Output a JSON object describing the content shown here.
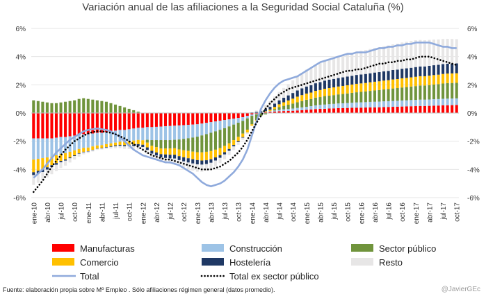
{
  "title": "Variación anual de las afiliaciones a la Seguridad Social Cataluña (%)",
  "source": "Fuente: elaboración propia sobre Mº Empleo . Sólo afiliaciones régimen general (datos promedio).",
  "credit": "@JavierGEc",
  "chart_data": {
    "type": "bar",
    "title": "Variación anual de las afiliaciones a la Seguridad Social Cataluña (%)",
    "ylim": [
      -6,
      6
    ],
    "yticks": [
      "-6%",
      "-4%",
      "-2%",
      "0%",
      "2%",
      "4%",
      "6%"
    ],
    "x_tick_labels": [
      "ene-10",
      "abr-10",
      "jul-10",
      "oct-10",
      "ene-11",
      "abr-11",
      "jul-11",
      "oct-11",
      "ene-12",
      "abr-12",
      "jul-12",
      "oct-12",
      "ene-13",
      "abr-13",
      "jul-13",
      "oct-13",
      "ene-14",
      "abr-14",
      "jul-14",
      "oct-14",
      "ene-15",
      "abr-15",
      "jul-15",
      "oct-15",
      "ene-16",
      "abr-16",
      "jul-16",
      "oct-16",
      "ene-17",
      "abr-17",
      "jul-17",
      "oct-17"
    ],
    "legend": [
      {
        "name": "Manufacturas",
        "color": "#ff0000",
        "kind": "bar"
      },
      {
        "name": "Construcción",
        "color": "#9dc3e6",
        "kind": "bar"
      },
      {
        "name": "Sector público",
        "color": "#70943c",
        "kind": "bar"
      },
      {
        "name": "Comercio",
        "color": "#ffc000",
        "kind": "bar"
      },
      {
        "name": "Hostelería",
        "color": "#1f3864",
        "kind": "bar"
      },
      {
        "name": "Resto",
        "color": "#e7e6e6",
        "kind": "bar"
      },
      {
        "name": "Total",
        "color": "#8faadc",
        "kind": "line"
      },
      {
        "name": "Total ex sector público",
        "color": "#000000",
        "kind": "dotted"
      }
    ],
    "series": [
      {
        "name": "Manufacturas",
        "values": [
          -1.8,
          -1.8,
          -1.8,
          -1.8,
          -1.8,
          -1.75,
          -1.7,
          -1.7,
          -1.65,
          -1.6,
          -1.55,
          -1.5,
          -1.5,
          -1.45,
          -1.4,
          -1.4,
          -1.35,
          -1.3,
          -1.25,
          -1.2,
          -1.2,
          -1.15,
          -1.1,
          -1.05,
          -1.05,
          -1.0,
          -1.0,
          -0.98,
          -0.96,
          -0.94,
          -0.92,
          -0.9,
          -0.88,
          -0.86,
          -0.84,
          -0.82,
          -0.8,
          -0.75,
          -0.7,
          -0.65,
          -0.6,
          -0.55,
          -0.5,
          -0.45,
          -0.4,
          -0.35,
          -0.3,
          -0.2,
          -0.1,
          -0.05,
          0.0,
          0.05,
          0.08,
          0.1,
          0.12,
          0.14,
          0.15,
          0.16,
          0.18,
          0.2,
          0.22,
          0.25,
          0.28,
          0.3,
          0.3,
          0.32,
          0.33,
          0.35,
          0.35,
          0.36,
          0.37,
          0.38,
          0.38,
          0.39,
          0.4,
          0.4,
          0.41,
          0.42,
          0.43,
          0.44,
          0.45,
          0.46,
          0.47,
          0.48,
          0.49,
          0.5,
          0.5,
          0.51,
          0.52,
          0.53,
          0.55,
          0.55,
          0.56,
          0.57
        ]
      },
      {
        "name": "Construcción",
        "values": [
          -1.5,
          -1.45,
          -1.4,
          -1.35,
          -1.3,
          -1.25,
          -1.2,
          -1.15,
          -1.1,
          -1.05,
          -1.0,
          -0.97,
          -0.95,
          -0.92,
          -0.9,
          -0.88,
          -0.86,
          -0.85,
          -0.85,
          -0.84,
          -0.84,
          -0.84,
          -0.85,
          -0.86,
          -0.88,
          -0.9,
          -0.92,
          -0.94,
          -0.96,
          -0.98,
          -1.0,
          -1.0,
          -1.0,
          -0.98,
          -0.95,
          -0.92,
          -0.88,
          -0.84,
          -0.8,
          -0.75,
          -0.7,
          -0.64,
          -0.58,
          -0.5,
          -0.42,
          -0.34,
          -0.26,
          -0.18,
          -0.1,
          -0.05,
          0.0,
          0.03,
          0.06,
          0.08,
          0.1,
          0.12,
          0.14,
          0.16,
          0.18,
          0.2,
          0.22,
          0.24,
          0.26,
          0.28,
          0.3,
          0.31,
          0.32,
          0.33,
          0.34,
          0.35,
          0.36,
          0.37,
          0.38,
          0.38,
          0.39,
          0.4,
          0.4,
          0.41,
          0.41,
          0.42,
          0.42,
          0.43,
          0.43,
          0.44,
          0.44,
          0.45,
          0.45,
          0.45,
          0.46,
          0.46,
          0.46,
          0.47,
          0.47,
          0.47
        ]
      },
      {
        "name": "Sector público",
        "values": [
          0.9,
          0.85,
          0.8,
          0.75,
          0.7,
          0.7,
          0.75,
          0.8,
          0.85,
          0.9,
          1.0,
          1.05,
          1.0,
          0.95,
          0.9,
          0.85,
          0.8,
          0.7,
          0.6,
          0.5,
          0.4,
          0.3,
          0.2,
          0.1,
          0.0,
          -0.2,
          -0.4,
          -0.5,
          -0.6,
          -0.6,
          -0.6,
          -0.6,
          -0.7,
          -0.8,
          -0.9,
          -1.0,
          -1.1,
          -1.2,
          -1.25,
          -1.3,
          -1.3,
          -1.3,
          -1.25,
          -1.2,
          -1.1,
          -1.0,
          -0.9,
          -0.8,
          -0.6,
          -0.4,
          -0.2,
          -0.1,
          0.0,
          0.1,
          0.2,
          0.25,
          0.3,
          0.35,
          0.4,
          0.45,
          0.5,
          0.5,
          0.55,
          0.55,
          0.6,
          0.6,
          0.62,
          0.64,
          0.66,
          0.68,
          0.7,
          0.72,
          0.74,
          0.76,
          0.78,
          0.8,
          0.82,
          0.84,
          0.86,
          0.88,
          0.9,
          0.92,
          0.94,
          0.96,
          0.98,
          1.0,
          1.0,
          1.02,
          1.04,
          1.06,
          1.08,
          1.1,
          1.1,
          1.1
        ]
      },
      {
        "name": "Comercio",
        "values": [
          -0.9,
          -0.85,
          -0.8,
          -0.7,
          -0.6,
          -0.55,
          -0.5,
          -0.45,
          -0.4,
          -0.35,
          -0.3,
          -0.28,
          -0.26,
          -0.24,
          -0.22,
          -0.2,
          -0.2,
          -0.2,
          -0.2,
          -0.22,
          -0.24,
          -0.26,
          -0.28,
          -0.3,
          -0.32,
          -0.34,
          -0.36,
          -0.38,
          -0.4,
          -0.42,
          -0.44,
          -0.46,
          -0.48,
          -0.5,
          -0.52,
          -0.54,
          -0.56,
          -0.58,
          -0.6,
          -0.58,
          -0.55,
          -0.5,
          -0.45,
          -0.4,
          -0.35,
          -0.3,
          -0.25,
          -0.2,
          -0.1,
          -0.05,
          0.0,
          0.05,
          0.1,
          0.15,
          0.2,
          0.25,
          0.3,
          0.35,
          0.4,
          0.42,
          0.44,
          0.46,
          0.48,
          0.5,
          0.52,
          0.54,
          0.55,
          0.56,
          0.57,
          0.58,
          0.59,
          0.6,
          0.6,
          0.6,
          0.61,
          0.62,
          0.62,
          0.63,
          0.63,
          0.64,
          0.64,
          0.65,
          0.65,
          0.65,
          0.66,
          0.66,
          0.66,
          0.67,
          0.67,
          0.67,
          0.68,
          0.68,
          0.68,
          0.68
        ]
      },
      {
        "name": "Hostelería",
        "values": [
          -0.2,
          -0.2,
          -0.18,
          -0.16,
          -0.14,
          -0.12,
          -0.1,
          -0.08,
          -0.06,
          -0.05,
          -0.04,
          -0.03,
          -0.02,
          -0.02,
          -0.02,
          -0.03,
          -0.04,
          -0.05,
          -0.06,
          -0.07,
          -0.08,
          -0.1,
          -0.12,
          -0.14,
          -0.16,
          -0.18,
          -0.2,
          -0.22,
          -0.24,
          -0.25,
          -0.26,
          -0.27,
          -0.28,
          -0.29,
          -0.3,
          -0.3,
          -0.3,
          -0.29,
          -0.27,
          -0.25,
          -0.22,
          -0.19,
          -0.16,
          -0.13,
          -0.1,
          -0.07,
          -0.04,
          0.0,
          0.04,
          0.08,
          0.12,
          0.16,
          0.2,
          0.24,
          0.28,
          0.32,
          0.36,
          0.4,
          0.44,
          0.48,
          0.5,
          0.52,
          0.54,
          0.56,
          0.58,
          0.6,
          0.6,
          0.6,
          0.61,
          0.62,
          0.62,
          0.63,
          0.63,
          0.64,
          0.64,
          0.65,
          0.65,
          0.66,
          0.66,
          0.67,
          0.67,
          0.68,
          0.68,
          0.68,
          0.69,
          0.69,
          0.69,
          0.7,
          0.7,
          0.7,
          0.7,
          0.7,
          0.7,
          0.7
        ]
      },
      {
        "name": "Resto",
        "values": [
          -0.7,
          -0.65,
          -0.6,
          -0.55,
          -0.5,
          -0.45,
          -0.4,
          -0.35,
          -0.3,
          -0.25,
          -0.2,
          -0.15,
          -0.12,
          -0.1,
          -0.08,
          -0.08,
          -0.1,
          -0.12,
          -0.14,
          -0.16,
          -0.18,
          -0.2,
          -0.22,
          -0.24,
          -0.26,
          -0.28,
          -0.3,
          -0.32,
          -0.34,
          -0.36,
          -0.38,
          -0.4,
          -0.42,
          -0.45,
          -0.48,
          -0.5,
          -0.52,
          -0.5,
          -0.48,
          -0.45,
          -0.42,
          -0.38,
          -0.34,
          -0.3,
          -0.25,
          -0.2,
          -0.15,
          -0.1,
          0.0,
          0.1,
          0.2,
          0.3,
          0.4,
          0.5,
          0.6,
          0.7,
          0.8,
          0.9,
          1.0,
          1.1,
          1.2,
          1.25,
          1.3,
          1.35,
          1.4,
          1.45,
          1.5,
          1.55,
          1.6,
          1.62,
          1.64,
          1.66,
          1.68,
          1.7,
          1.72,
          1.74,
          1.76,
          1.78,
          1.8,
          1.82,
          1.84,
          1.86,
          1.88,
          1.9,
          1.9,
          1.88,
          1.86,
          1.84,
          1.82,
          1.8,
          1.78,
          1.76,
          1.74,
          1.72
        ]
      },
      {
        "name": "Total",
        "values": [
          -4.6,
          -4.3,
          -4.0,
          -3.6,
          -3.2,
          -2.8,
          -2.5,
          -2.2,
          -1.9,
          -1.7,
          -1.5,
          -1.3,
          -1.2,
          -1.15,
          -1.1,
          -1.15,
          -1.2,
          -1.3,
          -1.5,
          -1.7,
          -2.0,
          -2.3,
          -2.6,
          -2.8,
          -3.0,
          -3.1,
          -3.2,
          -3.3,
          -3.4,
          -3.5,
          -3.5,
          -3.6,
          -3.7,
          -3.9,
          -4.1,
          -4.3,
          -4.6,
          -4.9,
          -5.1,
          -5.2,
          -5.1,
          -5.0,
          -4.8,
          -4.5,
          -4.2,
          -3.8,
          -3.3,
          -2.6,
          -1.6,
          -0.6,
          0.3,
          0.9,
          1.4,
          1.8,
          2.1,
          2.3,
          2.4,
          2.5,
          2.6,
          2.8,
          3.0,
          3.2,
          3.4,
          3.6,
          3.7,
          3.8,
          3.9,
          4.0,
          4.1,
          4.2,
          4.2,
          4.3,
          4.3,
          4.3,
          4.4,
          4.5,
          4.6,
          4.6,
          4.7,
          4.7,
          4.8,
          4.8,
          4.9,
          4.9,
          5.0,
          5.0,
          5.0,
          5.0,
          4.9,
          4.8,
          4.7,
          4.7,
          4.6,
          4.6
        ]
      },
      {
        "name": "Total ex sector público",
        "values": [
          -5.6,
          -5.2,
          -4.8,
          -4.3,
          -3.8,
          -3.4,
          -3.0,
          -2.6,
          -2.3,
          -2.0,
          -1.8,
          -1.6,
          -1.45,
          -1.35,
          -1.3,
          -1.3,
          -1.35,
          -1.4,
          -1.5,
          -1.65,
          -1.8,
          -2.0,
          -2.2,
          -2.4,
          -2.6,
          -2.8,
          -3.0,
          -3.1,
          -3.2,
          -3.3,
          -3.3,
          -3.4,
          -3.5,
          -3.6,
          -3.7,
          -3.8,
          -3.9,
          -4.0,
          -4.0,
          -4.0,
          -3.9,
          -3.8,
          -3.6,
          -3.4,
          -3.1,
          -2.8,
          -2.4,
          -1.9,
          -1.3,
          -0.7,
          -0.2,
          0.3,
          0.7,
          1.0,
          1.3,
          1.5,
          1.7,
          1.8,
          1.9,
          2.0,
          2.1,
          2.2,
          2.3,
          2.4,
          2.5,
          2.6,
          2.7,
          2.8,
          2.9,
          3.0,
          3.0,
          3.1,
          3.1,
          3.2,
          3.3,
          3.4,
          3.5,
          3.5,
          3.6,
          3.6,
          3.7,
          3.7,
          3.8,
          3.8,
          3.9,
          4.0,
          4.0,
          4.0,
          3.9,
          3.8,
          3.7,
          3.6,
          3.5,
          3.4
        ]
      }
    ]
  }
}
